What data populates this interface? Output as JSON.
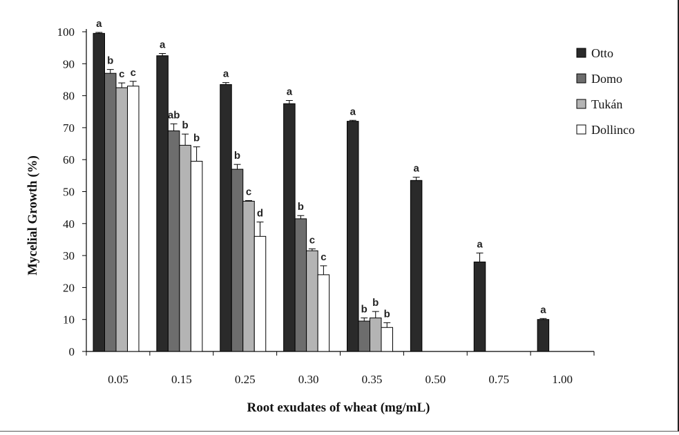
{
  "chart_data": {
    "type": "bar",
    "xlabel": "Root exudates of wheat (mg/mL)",
    "ylabel": "Mycelial Growth (%)",
    "ylim": [
      0,
      100
    ],
    "yticks": [
      "0",
      "10",
      "20",
      "30",
      "40",
      "50",
      "60",
      "70",
      "80",
      "90",
      "100"
    ],
    "categories": [
      "0.05",
      "0.15",
      "0.25",
      "0.30",
      "0.35",
      "0.50",
      "0.75",
      "1.00"
    ],
    "legend_position": "top-right",
    "series": [
      {
        "name": "Otto",
        "color": "#2a2a2a",
        "values": [
          99.5,
          92.5,
          83.5,
          77.5,
          72,
          53.5,
          28,
          10
        ],
        "errors": [
          0.3,
          0.7,
          0.6,
          1.0,
          0.3,
          1.0,
          2.8,
          0.3
        ],
        "labels": [
          "a",
          "a",
          "a",
          "a",
          "a",
          "a",
          "a",
          "a"
        ]
      },
      {
        "name": "Domo",
        "color": "#6d6d6d",
        "values": [
          87,
          69,
          57,
          41.5,
          9.5,
          null,
          null,
          null
        ],
        "errors": [
          1.2,
          2.2,
          1.5,
          1.0,
          1.0,
          null,
          null,
          null
        ],
        "labels": [
          "b",
          "ab",
          "b",
          "b",
          "b",
          "",
          "",
          ""
        ]
      },
      {
        "name": "Tukán",
        "color": "#b4b4b4",
        "values": [
          82.5,
          64.5,
          47,
          31.5,
          10.5,
          null,
          null,
          null
        ],
        "errors": [
          1.5,
          3.5,
          0.2,
          0.6,
          2.0,
          null,
          null,
          null
        ],
        "labels": [
          "c",
          "b",
          "c",
          "c",
          "b",
          "",
          "",
          ""
        ]
      },
      {
        "name": "Dollinco",
        "color": "#ffffff",
        "values": [
          83,
          59.5,
          36,
          24,
          7.5,
          null,
          null,
          null
        ],
        "errors": [
          1.5,
          4.5,
          4.5,
          2.8,
          1.5,
          null,
          null,
          null
        ],
        "labels": [
          "c",
          "b",
          "d",
          "c",
          "b",
          "",
          "",
          ""
        ]
      }
    ]
  }
}
